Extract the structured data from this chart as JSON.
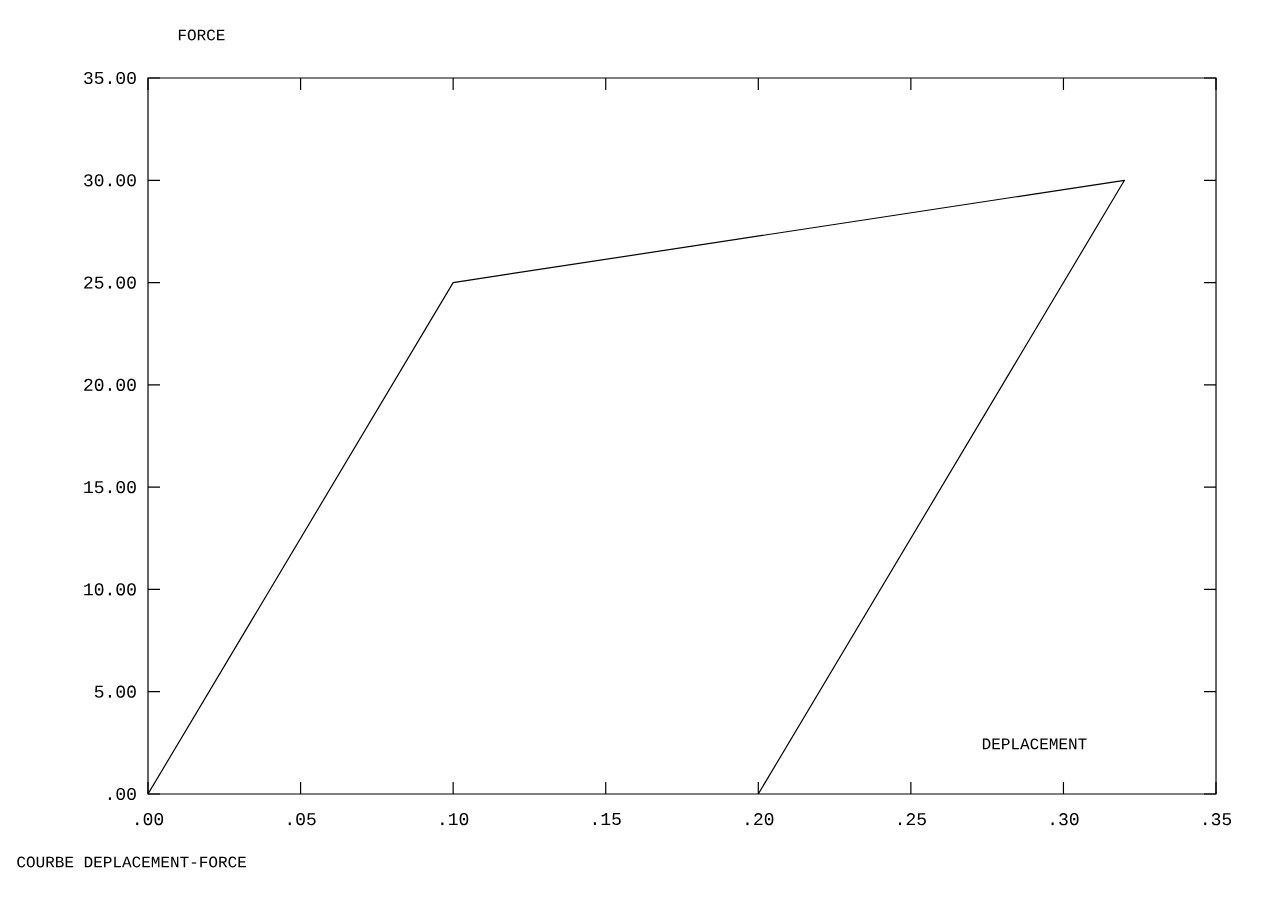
{
  "chart_data": {
    "type": "line",
    "title": "COURBE DEPLACEMENT-FORCE",
    "xlabel": "DEPLACEMENT",
    "ylabel": "FORCE",
    "x": [
      0,
      0.1,
      0.32,
      0.2
    ],
    "series": [
      {
        "color": "#000000",
        "values": [
          0,
          25,
          30,
          0
        ]
      }
    ],
    "xlim": [
      0,
      0.35
    ],
    "ylim": [
      0,
      35
    ],
    "xticks": [
      {
        "value": 0,
        "label": ".00"
      },
      {
        "value": 0.05,
        "label": ".05"
      },
      {
        "value": 0.1,
        "label": ".10"
      },
      {
        "value": 0.15,
        "label": ".15"
      },
      {
        "value": 0.2,
        "label": ".20"
      },
      {
        "value": 0.25,
        "label": ".25"
      },
      {
        "value": 0.3,
        "label": ".30"
      },
      {
        "value": 0.35,
        "label": ".35"
      }
    ],
    "yticks": [
      {
        "value": 0,
        "label": ".00"
      },
      {
        "value": 5,
        "label": "5.00"
      },
      {
        "value": 10,
        "label": "10.00"
      },
      {
        "value": 15,
        "label": "15.00"
      },
      {
        "value": 20,
        "label": "20.00"
      },
      {
        "value": 25,
        "label": "25.00"
      },
      {
        "value": 30,
        "label": "30.00"
      },
      {
        "value": 35,
        "label": "35.00"
      }
    ]
  }
}
